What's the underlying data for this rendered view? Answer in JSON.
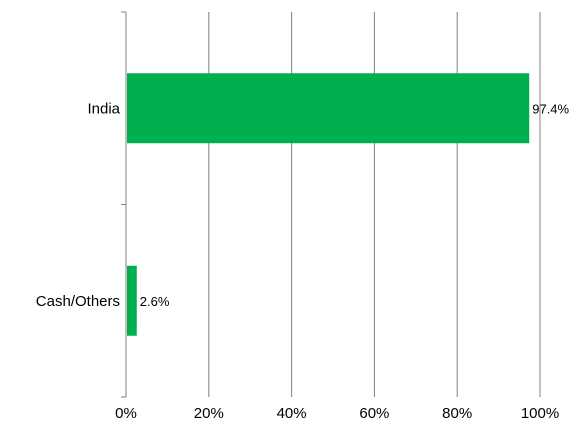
{
  "chart_data": {
    "type": "bar",
    "orientation": "horizontal",
    "categories": [
      "India",
      "Cash/Others"
    ],
    "values": [
      97.4,
      2.6
    ],
    "data_labels": [
      "97.4%",
      "2.6%"
    ],
    "x_ticks": [
      "0%",
      "20%",
      "40%",
      "60%",
      "80%",
      "100%"
    ],
    "xlim": [
      0,
      100
    ],
    "grid": "vertical",
    "bar_color": "#00b050",
    "gridline_color": "#808080",
    "title": "",
    "xlabel": "",
    "ylabel": ""
  }
}
